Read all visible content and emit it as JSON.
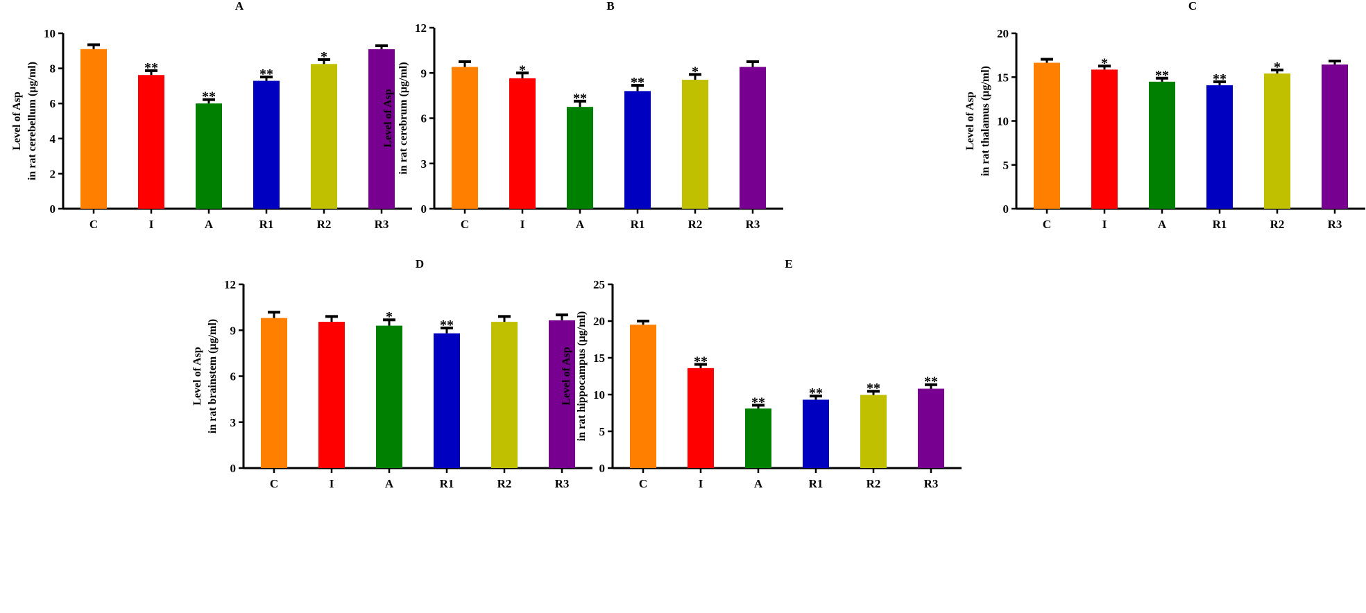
{
  "chart_data": [
    {
      "type": "bar",
      "title": "A",
      "ylabel": [
        "Level of Asp",
        "in rat cerebellum (µg/ml)"
      ],
      "categories": [
        "C",
        "I",
        "A",
        "R1",
        "R2",
        "R3"
      ],
      "values": [
        9.1,
        7.62,
        6.0,
        7.29,
        8.25,
        9.09
      ],
      "errors": [
        0.25,
        0.25,
        0.22,
        0.22,
        0.25,
        0.2
      ],
      "significance": [
        "",
        "**",
        "**",
        "**",
        "*",
        ""
      ],
      "ylim": [
        0,
        10
      ],
      "yticks": [
        0,
        2,
        4,
        6,
        8,
        10
      ]
    },
    {
      "type": "bar",
      "title": "B",
      "ylabel": [
        "Level of Asp",
        "in rat cerebrum (µg/ml)"
      ],
      "categories": [
        "C",
        "I",
        "A",
        "R1",
        "R2",
        "R3"
      ],
      "values": [
        9.4,
        8.65,
        6.75,
        7.8,
        8.55,
        9.4
      ],
      "errors": [
        0.35,
        0.35,
        0.38,
        0.38,
        0.35,
        0.35
      ],
      "significance": [
        "",
        "*",
        "**",
        "**",
        "*",
        ""
      ],
      "ylim": [
        0,
        12
      ],
      "yticks": [
        0,
        3,
        6,
        9,
        12
      ]
    },
    {
      "type": "bar",
      "title": "C",
      "ylabel": [
        "Level of Asp",
        "in rat thalamus (µg/ml)"
      ],
      "categories": [
        "C",
        "I",
        "A",
        "R1",
        "R2",
        "R3"
      ],
      "values": [
        16.64,
        15.86,
        14.48,
        14.08,
        15.42,
        16.44
      ],
      "errors": [
        0.4,
        0.4,
        0.4,
        0.4,
        0.4,
        0.4
      ],
      "significance": [
        "",
        "*",
        "**",
        "**",
        "*",
        ""
      ],
      "ylim": [
        0,
        20
      ],
      "yticks": [
        0,
        5,
        10,
        15,
        20
      ]
    },
    {
      "type": "bar",
      "title": "D",
      "ylabel": [
        "Level of Asp",
        "in rat brainstem (µg/ml)"
      ],
      "categories": [
        "C",
        "I",
        "A",
        "R1",
        "R2",
        "R3"
      ],
      "values": [
        9.8,
        9.55,
        9.3,
        8.8,
        9.55,
        9.65
      ],
      "errors": [
        0.38,
        0.35,
        0.38,
        0.35,
        0.35,
        0.35
      ],
      "significance": [
        "",
        "",
        "*",
        "**",
        "",
        ""
      ],
      "ylim": [
        0,
        12
      ],
      "yticks": [
        0,
        3,
        6,
        9,
        12
      ]
    },
    {
      "type": "bar",
      "title": "E",
      "ylabel": [
        "Level of Asp",
        "in rat hippocampus (µg/ml)"
      ],
      "categories": [
        "C",
        "I",
        "A",
        "R1",
        "R2",
        "R3"
      ],
      "values": [
        19.5,
        13.6,
        8.1,
        9.3,
        9.95,
        10.8
      ],
      "errors": [
        0.5,
        0.5,
        0.45,
        0.5,
        0.5,
        0.55
      ],
      "significance": [
        "",
        "**",
        "**",
        "**",
        "**",
        "**"
      ],
      "ylim": [
        0,
        25
      ],
      "yticks": [
        0,
        5,
        10,
        15,
        20,
        25
      ]
    }
  ],
  "colors": [
    "#FF8000",
    "#FF0000",
    "#008000",
    "#0000C0",
    "#C0C000",
    "#780090"
  ]
}
